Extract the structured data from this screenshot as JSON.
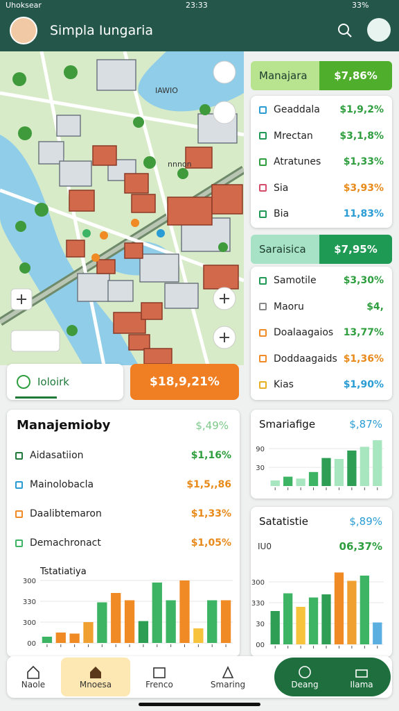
{
  "status_bar": {
    "carrier": "Uhoksear",
    "time": "23:33",
    "battery": "33%"
  },
  "header": {
    "title": "Simpla Iungaria"
  },
  "map": {
    "labels": [
      "IAWIO",
      "nnnon"
    ]
  },
  "map_card": {
    "label": "Ioloirk",
    "button": "$18,9,21%"
  },
  "panel_1": {
    "title": "Manajara",
    "value": "$7,86%",
    "rows": [
      [
        "Geaddala",
        "$1,9,2%"
      ],
      [
        "Mrectan",
        "$3,1,8%"
      ],
      [
        "Atratunes",
        "$1,33%"
      ],
      [
        "Sia",
        "$3,93%"
      ],
      [
        "Bia",
        "11,83%"
      ]
    ]
  },
  "panel_2": {
    "title": "Saraisica",
    "value": "$7,95%",
    "rows": [
      [
        "Samotile",
        "$3,30%"
      ],
      [
        "Maoru",
        "$4,"
      ],
      [
        "Doalaagaios",
        "13,77%"
      ],
      [
        "Doddaagaids",
        "$1,36%"
      ],
      [
        "Kias",
        "$1,90%"
      ]
    ]
  },
  "left_card": {
    "title": "Manajemioby",
    "value": "$,49%",
    "rows": [
      [
        "Aidasatiion",
        "$1,16%"
      ],
      [
        "Mainolobacla",
        "$1,5,,86"
      ],
      [
        "Daalibtemaron",
        "$1,33%"
      ],
      [
        "Demachronact",
        "$1,05%"
      ]
    ],
    "chart": {
      "type": "bar",
      "title": "Tstatiatiya",
      "values": [
        0.3,
        0.5,
        0.45,
        1.0,
        1.95,
        2.4,
        2.05,
        1.05,
        2.9,
        2.05,
        3.0,
        0.7,
        2.05,
        2.05
      ],
      "colors": [
        "#3cb464",
        "#f08a24",
        "#f08a24",
        "#f0a030",
        "#3cb464",
        "#f08a24",
        "#f08a24",
        "#2e9e55",
        "#3cb464",
        "#3cb464",
        "#f08a24",
        "#f7c23c",
        "#3cb464",
        "#f08a24"
      ],
      "ylim": [
        0,
        3.4
      ],
      "yticks": [
        {
          "value": 0,
          "label": "00"
        },
        {
          "value": 1,
          "label": "300"
        },
        {
          "value": 2,
          "label": "330"
        },
        {
          "value": 3,
          "label": "300"
        }
      ]
    }
  },
  "small_card": {
    "chart": {
      "type": "bar",
      "title": "Smariafige",
      "value": "$,87%",
      "values": [
        0.3,
        0.5,
        0.4,
        0.75,
        1.5,
        1.45,
        1.9,
        2.1,
        2.45
      ],
      "colors": [
        "#a8e6c0",
        "#3cb464",
        "#a8e6c0",
        "#3cb464",
        "#2e9e55",
        "#a8e6c0",
        "#2e9e55",
        "#a8e6c0",
        "#a8e6c0"
      ],
      "ylim": [
        0,
        2.6
      ],
      "yticks": [
        {
          "value": 1,
          "label": "30"
        },
        {
          "value": 2,
          "label": "90"
        }
      ]
    }
  },
  "big_card": {
    "chart": {
      "type": "bar",
      "title": "Satatistie",
      "value": "$,89%",
      "subtitle": "IU0",
      "subvalue": "06,37%",
      "values": [
        1.6,
        2.45,
        1.8,
        2.25,
        2.4,
        3.45,
        3.05,
        3.3,
        1.05
      ],
      "colors": [
        "#2e9e55",
        "#3cb464",
        "#f7c23c",
        "#3cb464",
        "#2e9e55",
        "#f08a24",
        "#f0a030",
        "#3cb464",
        "#5aaee0"
      ],
      "ylim": [
        0,
        3.6
      ],
      "yticks": [
        {
          "value": 0,
          "label": "00"
        },
        {
          "value": 1,
          "label": "30"
        },
        {
          "value": 2,
          "label": "330"
        },
        {
          "value": 3,
          "label": "300"
        }
      ]
    }
  },
  "nav": [
    "Naole",
    "Mnoesa",
    "Frenco",
    "Smaring",
    "Deang",
    "Ilama"
  ]
}
